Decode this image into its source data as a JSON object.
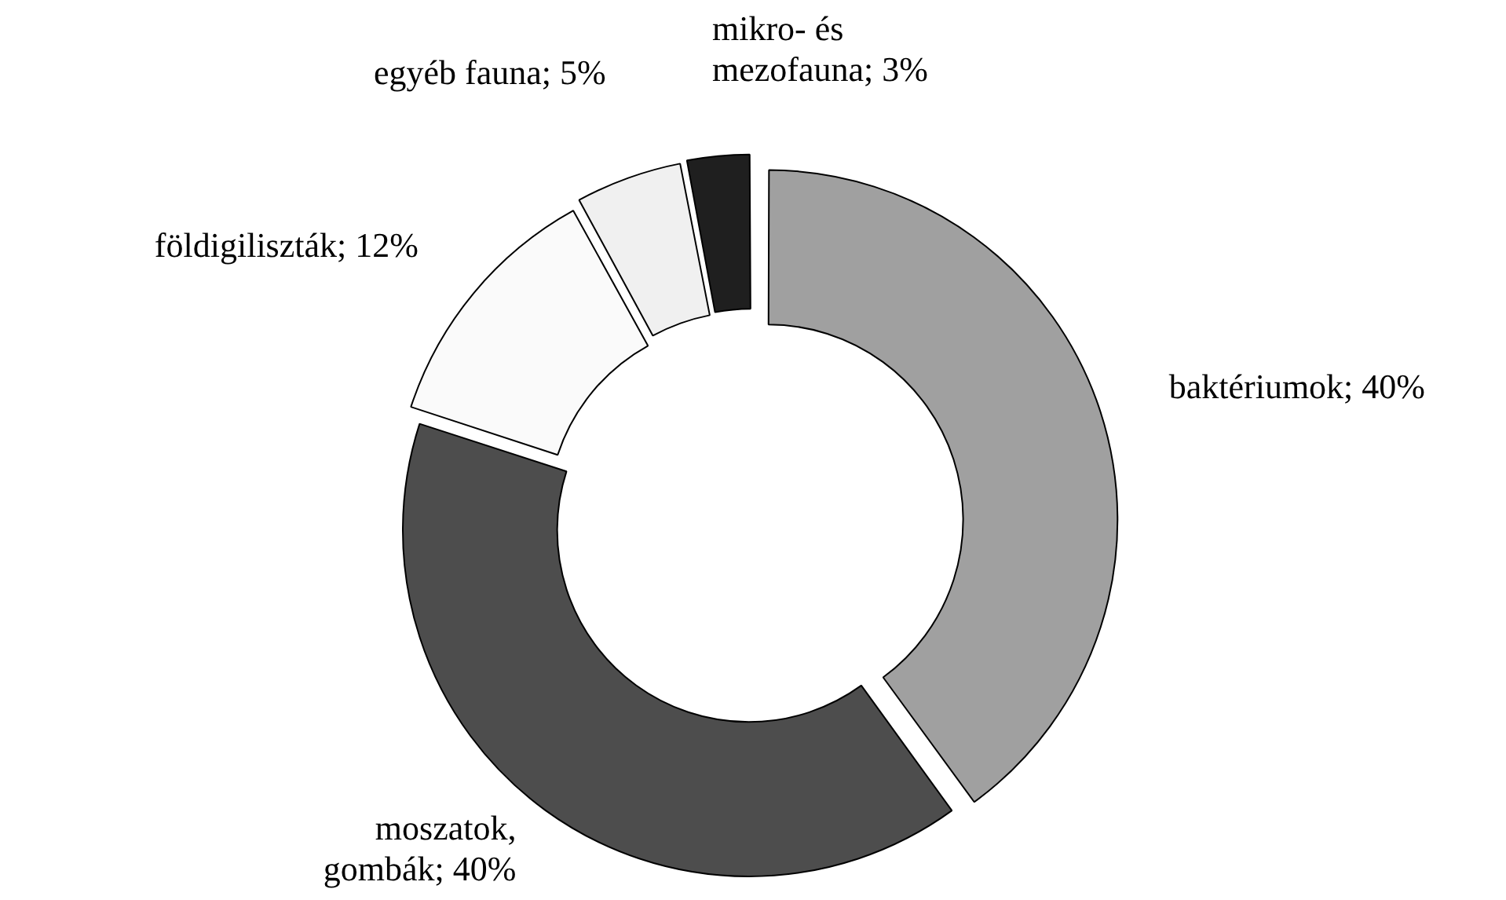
{
  "chart_data": {
    "type": "donut",
    "categories": [
      "baktériumok",
      "moszatok, gombák",
      "földigiliszták",
      "egyéb fauna",
      "mikro- és mezofauna"
    ],
    "values": [
      40,
      40,
      12,
      5,
      3
    ],
    "value_labels": [
      "40%",
      "40%",
      "12%",
      "5%",
      "3%"
    ],
    "colors": [
      "#a0a0a0",
      "#4d4d4d",
      "#fafafa",
      "#f0f0f0",
      "#1f1f1f"
    ],
    "legend": false
  }
}
